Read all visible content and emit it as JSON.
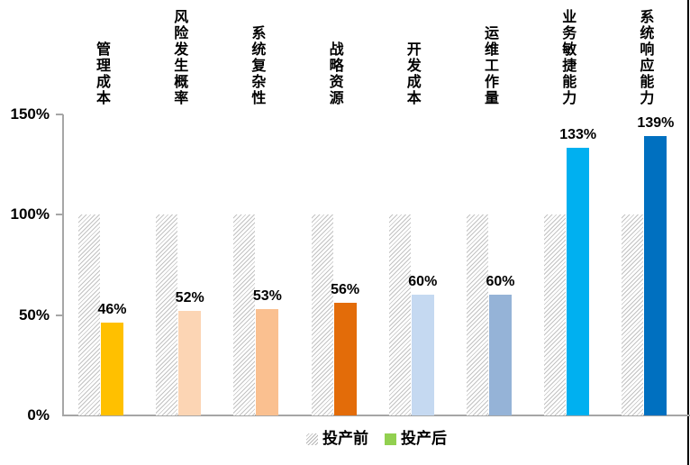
{
  "chart_data": {
    "type": "bar",
    "categories": [
      "管理成本",
      "风险发生概率",
      "系统复杂性",
      "战略资源",
      "开发成本",
      "运维工作量",
      "业务敏捷能力",
      "系统响应能力"
    ],
    "series": [
      {
        "name": "投产前",
        "values": [
          100,
          100,
          100,
          100,
          100,
          100,
          100,
          100
        ],
        "style": "hatched-gray"
      },
      {
        "name": "投产后",
        "values": [
          46,
          52,
          53,
          56,
          60,
          60,
          133,
          139
        ],
        "colors": [
          "#FFC000",
          "#FCD5B4",
          "#FAC090",
          "#E36C09",
          "#C5D9F1",
          "#95B3D7",
          "#00B0F0",
          "#0070C0"
        ]
      }
    ],
    "data_labels": [
      "46%",
      "52%",
      "53%",
      "56%",
      "60%",
      "60%",
      "133%",
      "139%"
    ],
    "y_ticks": [
      {
        "label": "0%",
        "value": 0
      },
      {
        "label": "50%",
        "value": 50
      },
      {
        "label": "100%",
        "value": 100
      },
      {
        "label": "150%",
        "value": 150
      }
    ],
    "ylim": [
      0,
      150
    ],
    "grid": false,
    "axis_color": "#A6A6A6",
    "legend_position": "bottom",
    "legend": [
      {
        "label": "投产前",
        "swatch": "hatched-gray"
      },
      {
        "label": "投产后",
        "swatch": "solid",
        "swatch_color": "#92D050"
      }
    ]
  },
  "page": {
    "background": "#FFFFFF",
    "right_border_color": "#000000",
    "hatch_line_color": "#C2C2C2",
    "text_color": "#000000"
  }
}
